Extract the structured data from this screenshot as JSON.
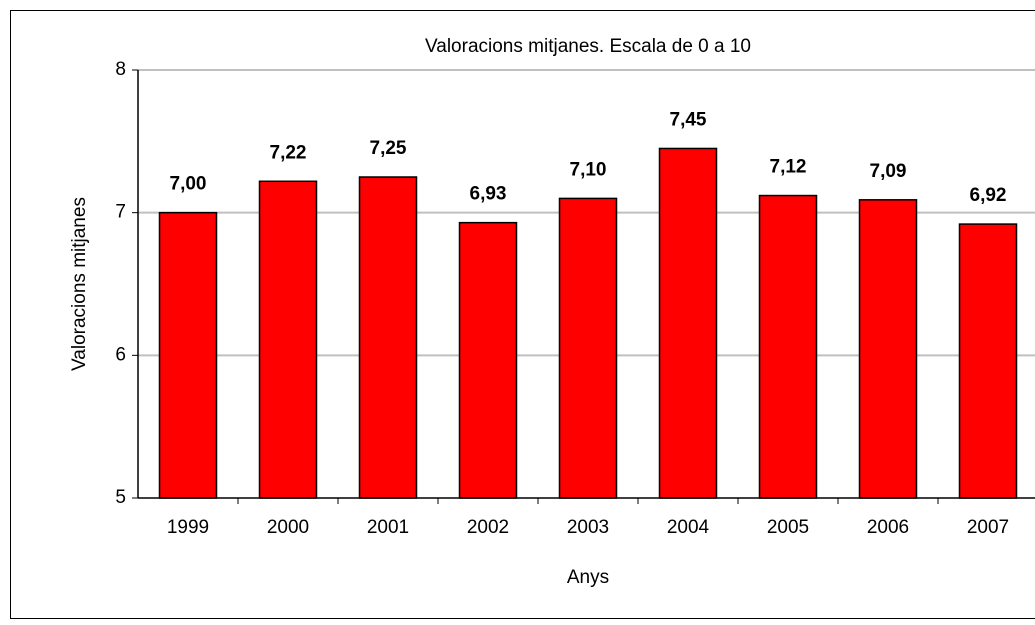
{
  "chart_data": {
    "type": "bar",
    "title": "Valoracions mitjanes. Escala de 0 a 10",
    "x_label": "Anys",
    "y_label": "Valoracions mitjanes",
    "categories": [
      "1999",
      "2000",
      "2001",
      "2002",
      "2003",
      "2004",
      "2005",
      "2006",
      "2007"
    ],
    "values": [
      7.0,
      7.22,
      7.25,
      6.93,
      7.1,
      7.45,
      7.12,
      7.09,
      6.92
    ],
    "value_labels": [
      "7,00",
      "7,22",
      "7,25",
      "6,93",
      "7,10",
      "7,45",
      "7,12",
      "7,09",
      "6,92"
    ],
    "color": "#ff0000",
    "ylim": [
      5,
      8
    ],
    "yticks": [
      5,
      6,
      7,
      8
    ],
    "grid": true
  }
}
